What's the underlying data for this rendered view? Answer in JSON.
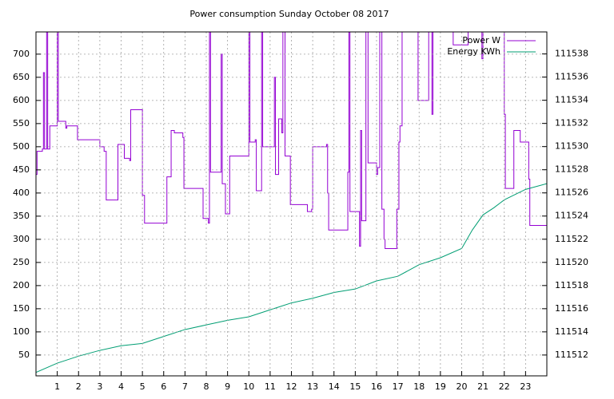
{
  "chart_data": {
    "type": "line",
    "title": "Power consumption Sunday October 08 2017",
    "xlim": [
      0,
      24
    ],
    "xticks": [
      1,
      2,
      3,
      4,
      5,
      6,
      7,
      8,
      9,
      10,
      11,
      12,
      13,
      14,
      15,
      16,
      17,
      18,
      19,
      20,
      21,
      22,
      23
    ],
    "ylim": [
      5,
      748
    ],
    "yticks": [
      50,
      100,
      150,
      200,
      250,
      300,
      350,
      400,
      450,
      500,
      550,
      600,
      650,
      700
    ],
    "y2lim": [
      111510.2,
      111539.9
    ],
    "y2ticks": [
      111512,
      111514,
      111516,
      111518,
      111520,
      111522,
      111524,
      111526,
      111528,
      111530,
      111532,
      111534,
      111536,
      111538
    ],
    "grid": true,
    "legend": "top-right",
    "series": [
      {
        "name": "Power W",
        "color": "#9400d3",
        "step": true,
        "x": [
          0.0,
          0.05,
          0.3,
          0.35,
          0.4,
          0.5,
          0.55,
          0.65,
          0.95,
          1.0,
          1.05,
          1.4,
          1.45,
          1.9,
          1.95,
          2.9,
          3.0,
          3.2,
          3.3,
          3.8,
          3.85,
          4.1,
          4.15,
          4.4,
          4.45,
          4.95,
          5.0,
          5.1,
          6.1,
          6.15,
          6.3,
          6.35,
          6.5,
          6.9,
          6.95,
          7.8,
          7.85,
          8.1,
          8.15,
          8.2,
          8.65,
          8.7,
          8.75,
          8.9,
          9.05,
          9.1,
          9.95,
          10.0,
          10.05,
          10.3,
          10.35,
          10.5,
          10.6,
          10.65,
          11.1,
          11.2,
          11.25,
          11.35,
          11.4,
          11.55,
          11.6,
          11.7,
          11.9,
          11.95,
          12.7,
          12.75,
          12.95,
          13.0,
          13.6,
          13.65,
          13.7,
          13.75,
          14.6,
          14.65,
          14.7,
          14.75,
          15.15,
          15.2,
          15.25,
          15.3,
          15.45,
          15.5,
          15.6,
          15.95,
          16.0,
          16.05,
          16.15,
          16.25,
          16.35,
          16.4,
          16.9,
          16.95,
          17.05,
          17.1,
          17.2,
          17.95,
          18.45,
          18.6,
          18.65,
          19.6,
          20.3,
          20.95,
          21.0,
          21.9,
          22.0,
          22.05,
          22.4,
          22.45,
          22.7,
          22.75,
          23.1,
          23.15,
          23.2,
          24.0
        ],
        "values": [
          440,
          490,
          495,
          660,
          495,
          750,
          495,
          545,
          545,
          750,
          555,
          540,
          545,
          545,
          515,
          515,
          500,
          490,
          385,
          385,
          505,
          505,
          475,
          470,
          580,
          580,
          395,
          335,
          335,
          435,
          435,
          535,
          530,
          520,
          410,
          410,
          345,
          335,
          750,
          445,
          445,
          700,
          420,
          355,
          355,
          480,
          480,
          750,
          510,
          515,
          405,
          405,
          750,
          500,
          500,
          650,
          440,
          440,
          560,
          530,
          750,
          480,
          480,
          375,
          375,
          360,
          365,
          500,
          500,
          505,
          400,
          320,
          320,
          445,
          750,
          360,
          360,
          285,
          535,
          340,
          340,
          750,
          465,
          465,
          440,
          455,
          750,
          365,
          300,
          280,
          280,
          365,
          510,
          545,
          750,
          600,
          750,
          570,
          750,
          720,
          750,
          690,
          750,
          750,
          570,
          410,
          410,
          535,
          535,
          510,
          510,
          430,
          330,
          330
        ]
      },
      {
        "name": "Energy KWh",
        "color": "#009e73",
        "axis": "y2",
        "x": [
          0,
          1,
          2,
          3,
          4,
          5,
          6,
          7,
          8,
          9,
          10,
          11,
          12,
          13,
          14,
          15,
          16,
          17,
          18,
          19,
          20,
          20.5,
          21,
          21.5,
          22,
          23,
          24
        ],
        "values": [
          111510.5,
          111511.3,
          111511.9,
          111512.4,
          111512.8,
          111513.0,
          111513.6,
          111514.2,
          111514.6,
          111515.0,
          111515.3,
          111515.9,
          111516.5,
          111516.9,
          111517.4,
          111517.7,
          111518.4,
          111518.8,
          111519.8,
          111520.4,
          111521.2,
          111522.8,
          111524.1,
          111524.7,
          111525.4,
          111526.3,
          111526.8
        ]
      }
    ]
  }
}
